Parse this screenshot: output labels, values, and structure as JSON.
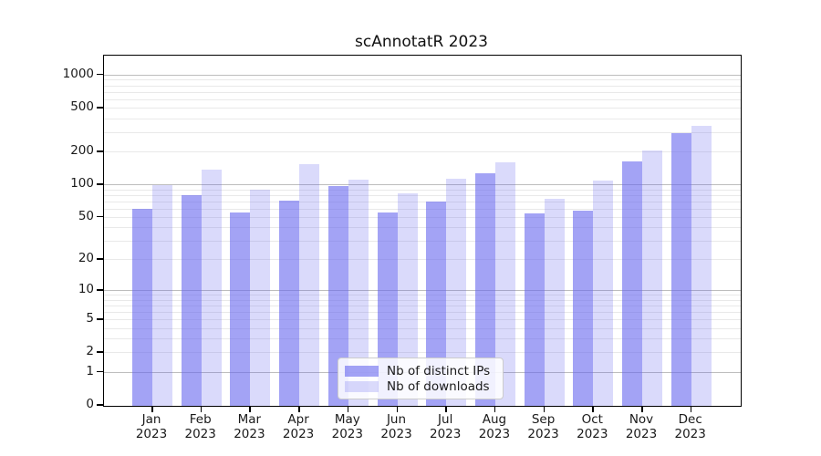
{
  "chart_data": {
    "type": "bar",
    "title": "scAnnotatR 2023",
    "categories": [
      "Jan",
      "Feb",
      "Mar",
      "Apr",
      "May",
      "Jun",
      "Jul",
      "Aug",
      "Sep",
      "Oct",
      "Nov",
      "Dec"
    ],
    "x_tick_second_line": "2023",
    "series": [
      {
        "name": "Nb of distinct IPs",
        "values": [
          60,
          79,
          55,
          71,
          96,
          55,
          70,
          127,
          54,
          57,
          162,
          293
        ],
        "fill": "rgba(102, 102, 238, 0.60)",
        "swatch_hex": "#a6a6f4"
      },
      {
        "name": "Nb of downloads",
        "values": [
          98,
          136,
          90,
          152,
          110,
          82,
          113,
          158,
          73,
          109,
          203,
          344
        ],
        "fill": "rgba(102, 102, 238, 0.24)",
        "swatch_hex": "#dcdcfa"
      }
    ],
    "y_ticks": [
      1000,
      500,
      200,
      100,
      50,
      20,
      10,
      5,
      2,
      1,
      0
    ],
    "y_major_gridlines": [
      1,
      10,
      100,
      1000
    ],
    "y_scale": "log1p",
    "ylim": [
      0,
      1490
    ],
    "xlabel": "",
    "ylabel": "",
    "grid": "both",
    "legend_position": "lower center"
  }
}
